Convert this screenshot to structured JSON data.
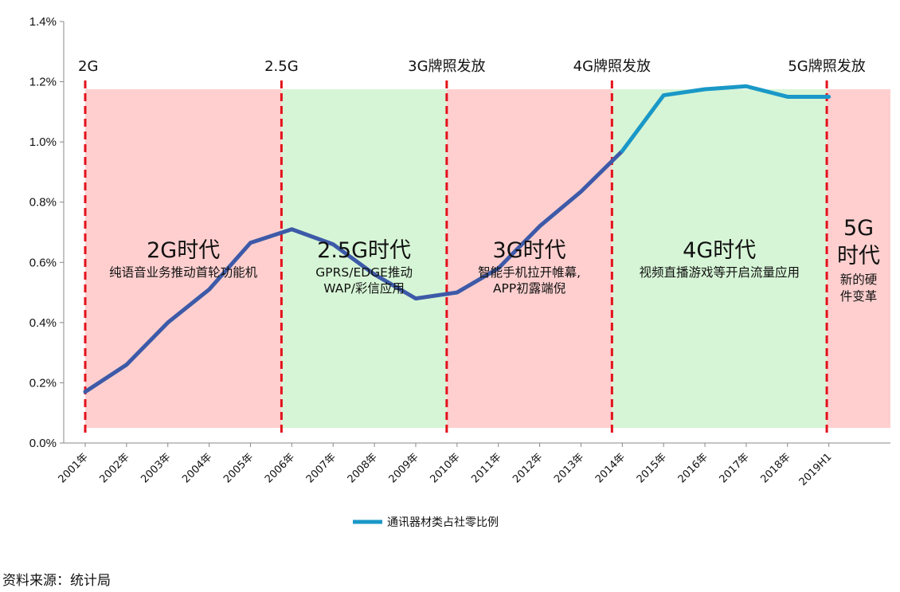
{
  "chart_data": {
    "type": "line",
    "categories": [
      "2001年",
      "2002年",
      "2003年",
      "2004年",
      "2005年",
      "2006年",
      "2007年",
      "2008年",
      "2009年",
      "2010年",
      "2011年",
      "2012年",
      "2013年",
      "2014年",
      "2015年",
      "2016年",
      "2017年",
      "2018年",
      "2019H1"
    ],
    "series": [
      {
        "name": "通讯器材类占社零比例",
        "values": [
          0.17,
          0.26,
          0.4,
          0.51,
          0.665,
          0.71,
          0.66,
          0.56,
          0.48,
          0.5,
          0.58,
          0.72,
          0.835,
          0.97,
          1.155,
          1.175,
          1.185,
          1.15,
          1.15
        ],
        "color": "#3d5aa8",
        "color_late": "#1a98c7"
      }
    ],
    "ylim": [
      0,
      1.4
    ],
    "yticks": [
      "0.0%",
      "0.2%",
      "0.4%",
      "0.6%",
      "0.8%",
      "1.0%",
      "1.2%",
      "1.4%"
    ],
    "xlabel": "",
    "ylabel": "",
    "title": "",
    "grid": false,
    "legend": "bottom-center",
    "milestones": [
      {
        "label": "2G",
        "at": 0
      },
      {
        "label": "2.5G",
        "at": 4.75
      },
      {
        "label": "3G牌照发放",
        "at": 8.75
      },
      {
        "label": "4G牌照发放",
        "at": 12.75
      },
      {
        "label": "5G牌照发放",
        "at": 17.95
      }
    ],
    "eras": [
      {
        "title": "2G时代",
        "desc": [
          "纯语音业务推动首轮功能机"
        ],
        "color": "#ffcfcf",
        "from": 0,
        "to": 4.75
      },
      {
        "title": "2.5G时代",
        "desc": [
          "GPRS/EDGE推动",
          "WAP/彩信应用"
        ],
        "color": "#d6f5d6",
        "from": 4.75,
        "to": 8.75
      },
      {
        "title": "3G时代",
        "desc": [
          "智能手机拉开帷幕,",
          "APP初露端倪"
        ],
        "color": "#ffcfcf",
        "from": 8.75,
        "to": 12.75
      },
      {
        "title": "4G时代",
        "desc": [
          "视频直播游戏等开启流量应用"
        ],
        "color": "#d6f5d6",
        "from": 12.75,
        "to": 17.95
      },
      {
        "title": "5G时代",
        "title_lines": [
          "5G",
          "时代"
        ],
        "desc": [
          "新的硬",
          "件变革"
        ],
        "color": "#ffcfcf",
        "from": 17.95,
        "to": 19.7
      }
    ],
    "colors": {
      "divider": "#e3121b"
    }
  },
  "source_text": "资料来源：统计局"
}
